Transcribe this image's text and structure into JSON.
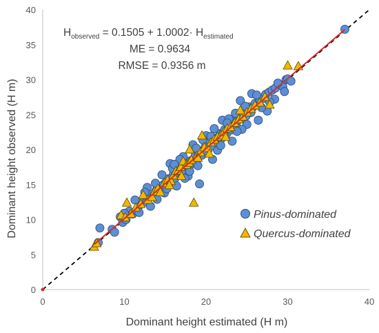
{
  "chart_data": {
    "type": "scatter",
    "title": "",
    "xlabel": "Dominant height estimated (H m)",
    "ylabel": "Dominant height observed (H m)",
    "xlim": [
      0,
      40
    ],
    "ylim": [
      0,
      40
    ],
    "xticks": [
      "0",
      "10",
      "20",
      "30",
      "40"
    ],
    "yticks": [
      "0",
      "5",
      "10",
      "15",
      "20",
      "25",
      "30",
      "35",
      "40"
    ],
    "grid": false,
    "legend_position": "right-middle",
    "annotation": {
      "line1_main": "H",
      "line1_sub1": "observed",
      "line1_mid": " = 0.1505 + 1.0002· H",
      "line1_sub2": "estimated",
      "line2": "ME = 0.9634",
      "line3": "RMSE = 0.9356 m"
    },
    "reference_line": {
      "name": "1:1",
      "style": "dashed",
      "color": "#000000",
      "from": [
        0,
        0
      ],
      "to": [
        40,
        40
      ]
    },
    "fit_line": {
      "color": "#d62b2b",
      "intercept": 0.1505,
      "slope": 1.0002,
      "x_range": [
        6.3,
        37.0
      ]
    },
    "series": [
      {
        "name": "Pinus-dominated",
        "marker": "circle",
        "color": "#5b8fd6",
        "points": [
          [
            37.0,
            37.2
          ],
          [
            7.0,
            8.8
          ],
          [
            6.8,
            6.7
          ],
          [
            8.5,
            8.6
          ],
          [
            8.8,
            8.2
          ],
          [
            9.5,
            10.4
          ],
          [
            9.8,
            9.6
          ],
          [
            10.2,
            10.0
          ],
          [
            10.6,
            11.2
          ],
          [
            11.0,
            10.8
          ],
          [
            11.5,
            11.3
          ],
          [
            11.9,
            12.1
          ],
          [
            12.2,
            12.6
          ],
          [
            12.7,
            12.5
          ],
          [
            13.0,
            13.1
          ],
          [
            13.3,
            13.6
          ],
          [
            13.6,
            13.4
          ],
          [
            13.9,
            14.2
          ],
          [
            14.2,
            14.6
          ],
          [
            14.5,
            14.1
          ],
          [
            14.8,
            15.0
          ],
          [
            15.1,
            15.3
          ],
          [
            15.3,
            15.8
          ],
          [
            15.5,
            15.4
          ],
          [
            15.8,
            16.0
          ],
          [
            16.0,
            16.5
          ],
          [
            16.2,
            15.9
          ],
          [
            16.5,
            16.7
          ],
          [
            16.7,
            17.2
          ],
          [
            16.9,
            16.8
          ],
          [
            17.1,
            17.4
          ],
          [
            17.3,
            17.0
          ],
          [
            17.5,
            17.8
          ],
          [
            17.7,
            18.1
          ],
          [
            17.9,
            17.6
          ],
          [
            18.1,
            18.4
          ],
          [
            18.3,
            18.0
          ],
          [
            18.5,
            18.7
          ],
          [
            18.7,
            19.2
          ],
          [
            18.9,
            18.6
          ],
          [
            19.1,
            19.3
          ],
          [
            19.3,
            19.7
          ],
          [
            19.5,
            19.2
          ],
          [
            19.7,
            19.9
          ],
          [
            19.9,
            20.4
          ],
          [
            20.1,
            19.8
          ],
          [
            20.3,
            20.6
          ],
          [
            20.5,
            21.1
          ],
          [
            20.7,
            20.5
          ],
          [
            20.9,
            21.2
          ],
          [
            21.1,
            21.6
          ],
          [
            21.3,
            21.0
          ],
          [
            21.5,
            21.7
          ],
          [
            21.7,
            22.3
          ],
          [
            21.9,
            21.6
          ],
          [
            22.1,
            22.4
          ],
          [
            22.3,
            22.9
          ],
          [
            22.5,
            22.2
          ],
          [
            22.7,
            23.0
          ],
          [
            22.9,
            23.5
          ],
          [
            23.1,
            22.8
          ],
          [
            23.3,
            23.6
          ],
          [
            23.5,
            24.1
          ],
          [
            23.7,
            23.4
          ],
          [
            23.9,
            24.2
          ],
          [
            24.1,
            24.8
          ],
          [
            24.3,
            24.4
          ],
          [
            24.5,
            25.0
          ],
          [
            24.7,
            25.5
          ],
          [
            24.9,
            24.8
          ],
          [
            25.1,
            25.6
          ],
          [
            25.3,
            26.1
          ],
          [
            25.5,
            25.3
          ],
          [
            25.7,
            26.0
          ],
          [
            26.0,
            26.6
          ],
          [
            26.3,
            26.4
          ],
          [
            26.6,
            27.1
          ],
          [
            27.0,
            27.3
          ],
          [
            27.3,
            27.9
          ],
          [
            27.7,
            28.2
          ],
          [
            28.1,
            28.5
          ],
          [
            28.5,
            28.8
          ],
          [
            29.0,
            29.3
          ],
          [
            29.4,
            29.0
          ],
          [
            29.8,
            30.0
          ],
          [
            24.2,
            27.0
          ],
          [
            25.6,
            28.0
          ],
          [
            26.4,
            24.2
          ],
          [
            27.5,
            25.5
          ],
          [
            19.2,
            15.1
          ],
          [
            12.8,
            14.6
          ],
          [
            14.0,
            12.9
          ],
          [
            15.6,
            18.0
          ],
          [
            16.4,
            14.8
          ],
          [
            18.4,
            20.7
          ],
          [
            20.8,
            18.6
          ],
          [
            22.0,
            24.2
          ],
          [
            23.2,
            21.2
          ],
          [
            21.0,
            23.0
          ],
          [
            17.8,
            16.2
          ],
          [
            14.6,
            16.4
          ],
          [
            13.2,
            11.9
          ],
          [
            11.3,
            12.8
          ],
          [
            10.0,
            10.9
          ],
          [
            26.8,
            26.0
          ],
          [
            28.4,
            27.2
          ],
          [
            29.6,
            28.3
          ],
          [
            25.0,
            23.6
          ],
          [
            24.4,
            22.9
          ],
          [
            22.8,
            24.4
          ],
          [
            20.0,
            22.0
          ],
          [
            19.0,
            17.7
          ],
          [
            17.2,
            19.0
          ],
          [
            15.9,
            17.3
          ],
          [
            14.9,
            13.8
          ],
          [
            12.5,
            13.9
          ],
          [
            11.8,
            11.0
          ],
          [
            16.8,
            18.6
          ],
          [
            18.0,
            16.9
          ],
          [
            19.6,
            21.4
          ],
          [
            21.4,
            19.9
          ],
          [
            23.6,
            25.2
          ],
          [
            24.8,
            26.2
          ],
          [
            26.2,
            27.8
          ],
          [
            27.8,
            26.8
          ],
          [
            28.8,
            29.5
          ],
          [
            30.0,
            30.1
          ],
          [
            30.4,
            29.8
          ],
          [
            21.8,
            20.6
          ],
          [
            20.6,
            21.9
          ],
          [
            18.8,
            20.2
          ],
          [
            17.4,
            15.9
          ],
          [
            16.1,
            17.9
          ],
          [
            15.2,
            14.4
          ],
          [
            13.8,
            15.2
          ],
          [
            22.6,
            23.8
          ],
          [
            23.8,
            22.6
          ]
        ]
      },
      {
        "name": "Quercus-dominated",
        "marker": "triangle",
        "color": "#f2b800",
        "points": [
          [
            31.3,
            31.9
          ],
          [
            30.0,
            32.0
          ],
          [
            6.3,
            6.1
          ],
          [
            6.6,
            6.6
          ],
          [
            9.6,
            10.6
          ],
          [
            10.1,
            10.3
          ],
          [
            10.3,
            12.4
          ],
          [
            10.8,
            10.8
          ],
          [
            11.4,
            11.7
          ],
          [
            12.0,
            12.2
          ],
          [
            12.3,
            13.5
          ],
          [
            12.9,
            12.8
          ],
          [
            13.4,
            13.2
          ],
          [
            13.7,
            14.0
          ],
          [
            14.1,
            14.4
          ],
          [
            14.4,
            13.9
          ],
          [
            14.9,
            15.2
          ],
          [
            15.3,
            15.6
          ],
          [
            15.7,
            15.5
          ],
          [
            16.0,
            16.3
          ],
          [
            16.3,
            16.9
          ],
          [
            16.6,
            17.0
          ],
          [
            16.9,
            17.5
          ],
          [
            17.2,
            18.3
          ],
          [
            17.6,
            17.8
          ],
          [
            17.9,
            18.1
          ],
          [
            18.2,
            18.5
          ],
          [
            18.5,
            12.4
          ],
          [
            18.9,
            19.1
          ],
          [
            19.3,
            19.6
          ],
          [
            19.5,
            22.0
          ],
          [
            19.8,
            20.3
          ],
          [
            20.2,
            20.2
          ],
          [
            20.6,
            21.0
          ],
          [
            21.0,
            21.4
          ],
          [
            21.4,
            21.8
          ],
          [
            21.8,
            22.0
          ],
          [
            22.2,
            22.5
          ],
          [
            22.6,
            23.0
          ],
          [
            23.0,
            23.2
          ],
          [
            23.5,
            23.8
          ],
          [
            24.0,
            24.3
          ],
          [
            24.5,
            24.7
          ],
          [
            25.0,
            25.3
          ],
          [
            25.5,
            25.8
          ],
          [
            26.0,
            26.3
          ],
          [
            26.6,
            26.7
          ],
          [
            27.2,
            27.5
          ],
          [
            27.8,
            26.4
          ],
          [
            15.5,
            14.9
          ],
          [
            17.0,
            16.2
          ],
          [
            19.0,
            18.8
          ],
          [
            20.4,
            19.4
          ],
          [
            22.4,
            21.8
          ],
          [
            24.2,
            25.6
          ],
          [
            18.0,
            20.0
          ]
        ]
      }
    ]
  }
}
